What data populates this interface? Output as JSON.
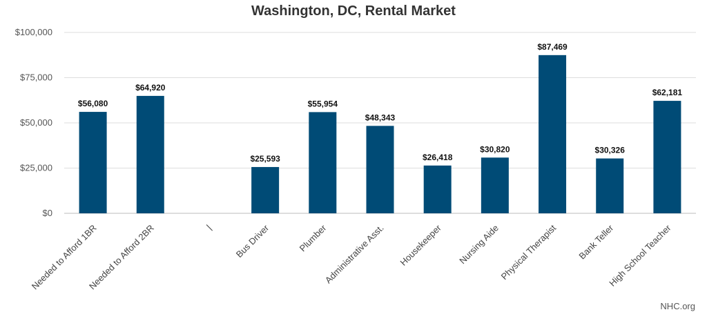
{
  "chart_data": {
    "type": "bar",
    "title": "Washington, DC, Rental Market",
    "categories": [
      "Needed to Afford 1BR",
      "Needed to Afford 2BR",
      "|",
      "Bus Driver",
      "Plumber",
      "Administrative Asst.",
      "Housekeeper",
      "Nursing Aide",
      "Physical Therapist",
      "Bank Teller",
      "High School Teacher"
    ],
    "values": [
      56080,
      64920,
      null,
      25593,
      55954,
      48343,
      26418,
      30820,
      87469,
      30326,
      62181
    ],
    "data_labels": [
      "$56,080",
      "$64,920",
      "",
      "$25,593",
      "$55,954",
      "$48,343",
      "$26,418",
      "$30,820",
      "$87,469",
      "$30,326",
      "$62,181"
    ],
    "ylim": [
      0,
      100000
    ],
    "yticks": [
      0,
      25000,
      50000,
      75000,
      100000
    ],
    "ytick_labels": [
      "$0",
      "$25,000",
      "$50,000",
      "$75,000",
      "$100,000"
    ],
    "bar_color": "#004b76",
    "grid": true,
    "xlabel": "",
    "ylabel": ""
  },
  "source": "NHC.org"
}
